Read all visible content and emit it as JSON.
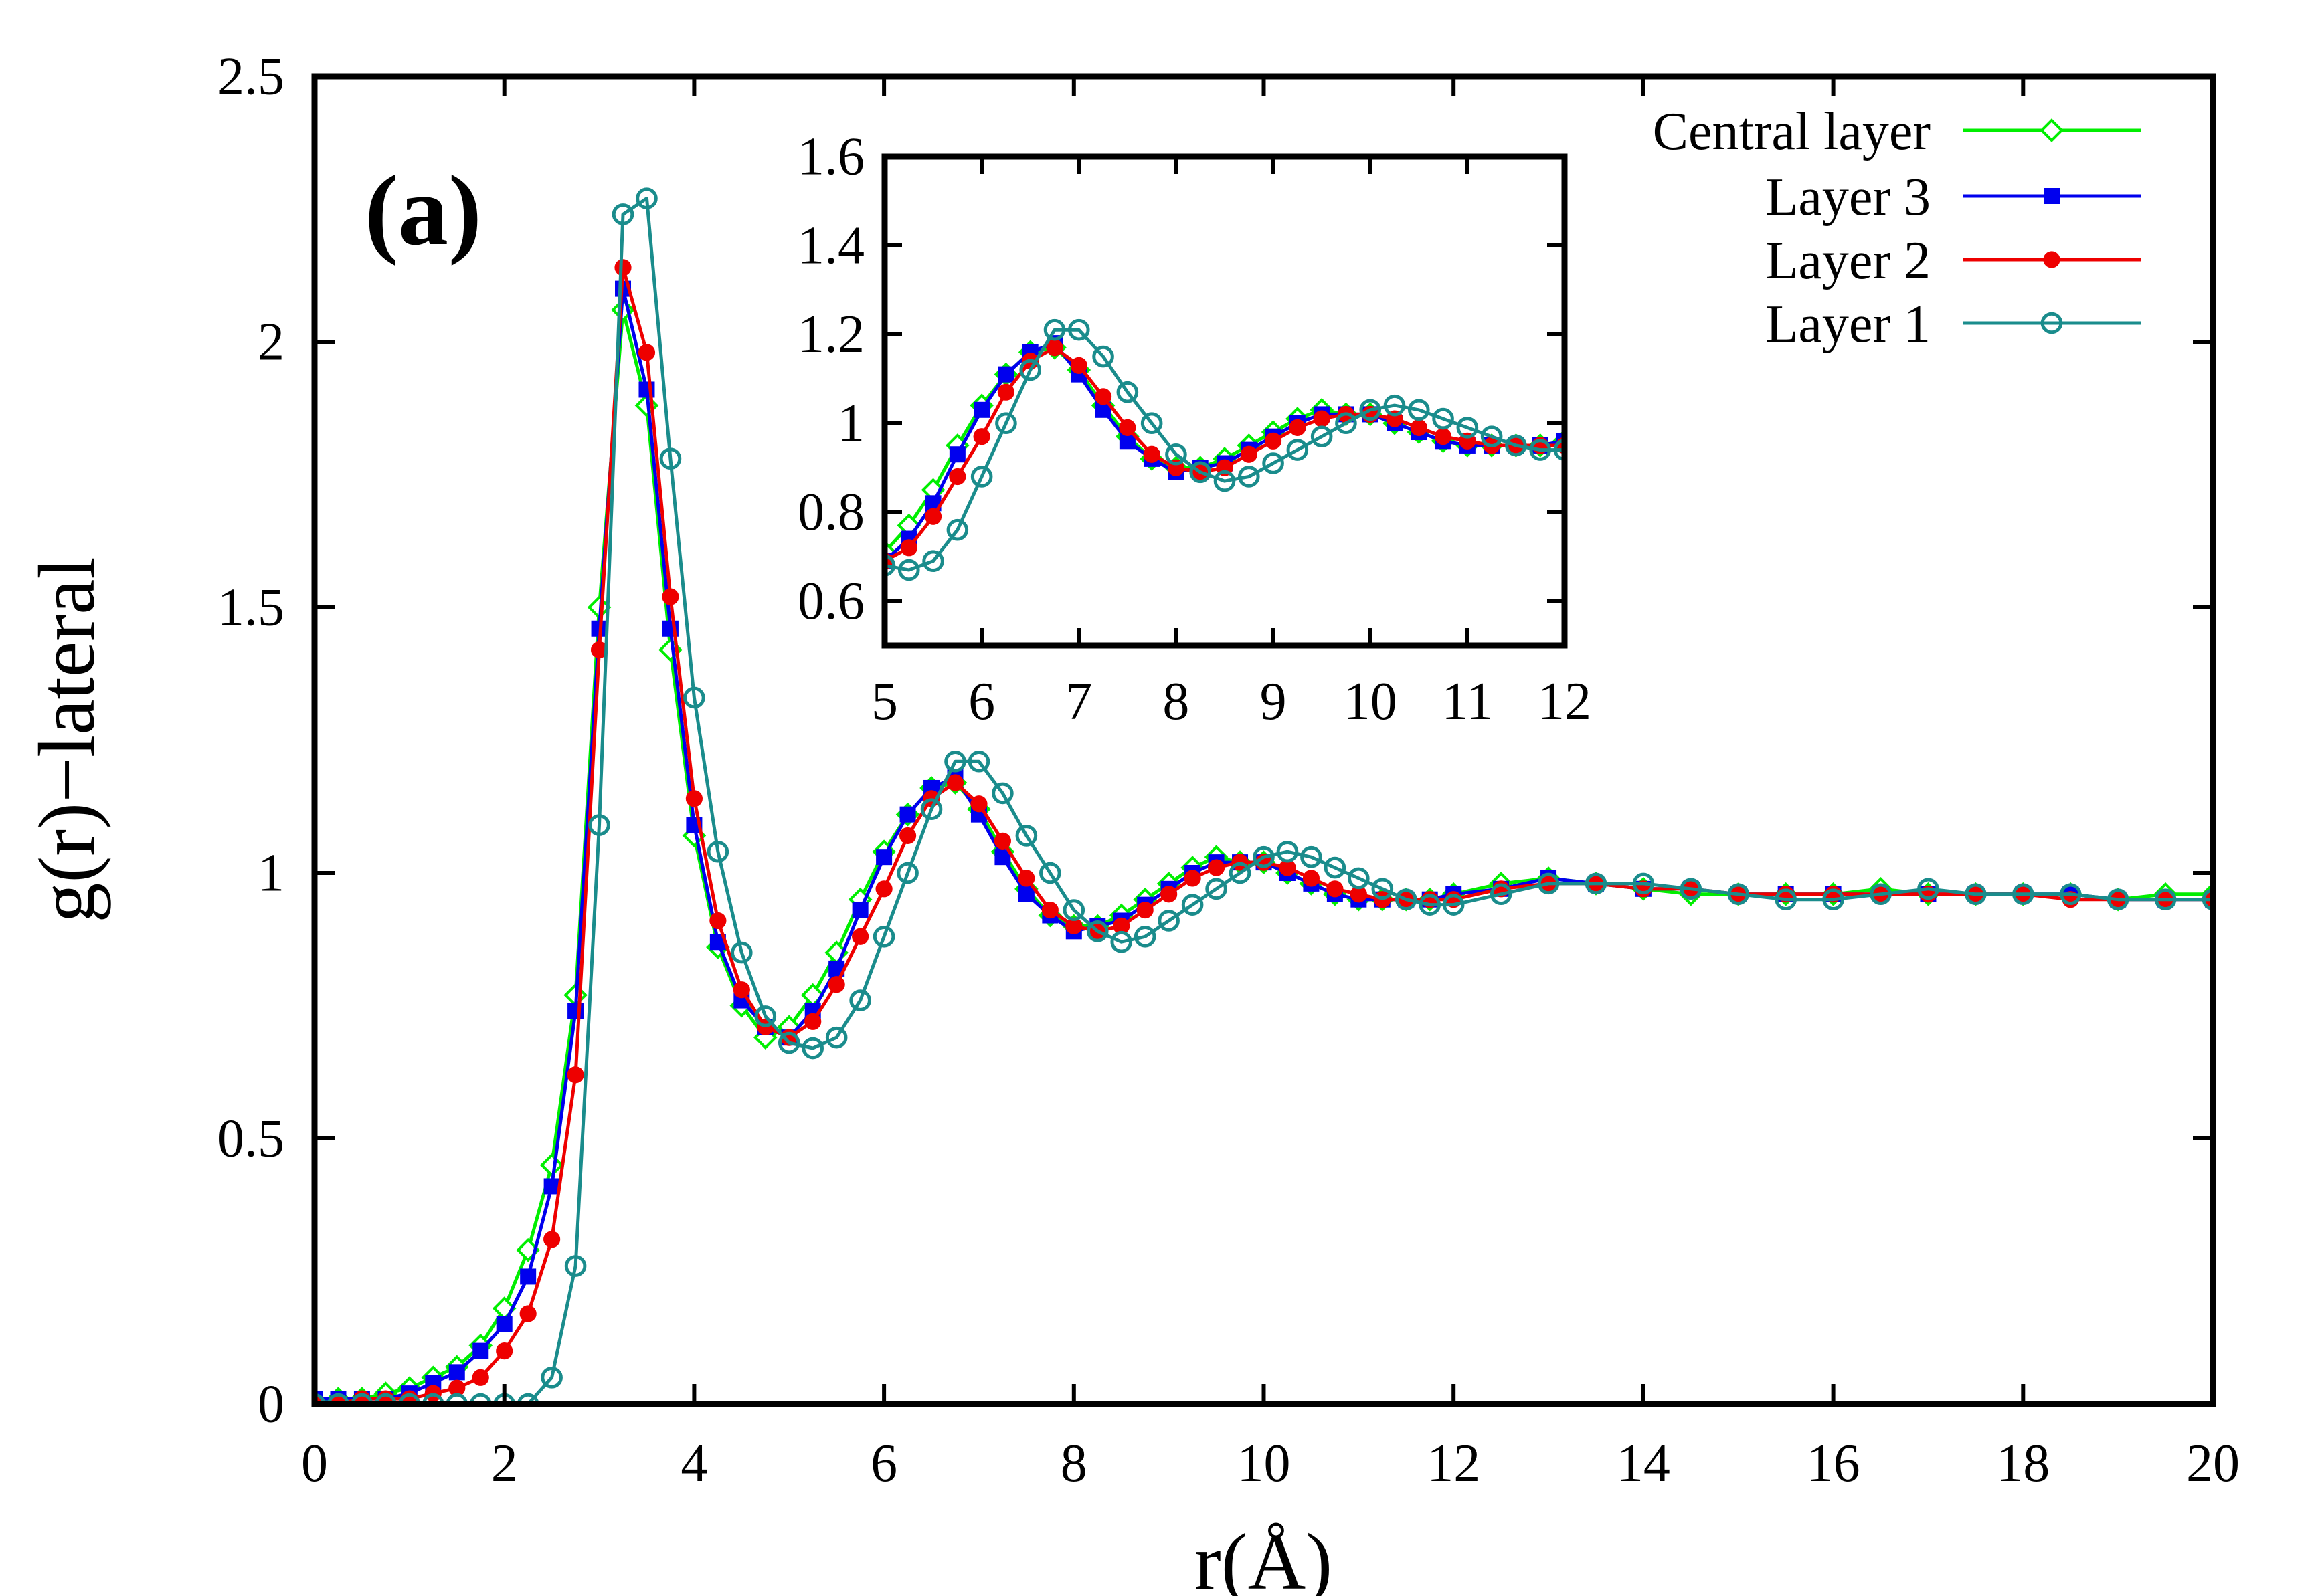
{
  "chart_data": [
    {
      "type": "line",
      "panel_label": "(a)",
      "xlabel": "r(Å)",
      "ylabel": "g(r)−lateral",
      "xlim": [
        0,
        20
      ],
      "ylim": [
        0,
        2.5
      ],
      "xticks": [
        0,
        2,
        4,
        6,
        8,
        10,
        12,
        14,
        16,
        18,
        20
      ],
      "yticks": [
        0,
        0.5,
        1,
        1.5,
        2,
        2.5
      ],
      "xtick_labels": [
        "0",
        "2",
        "4",
        "6",
        "8",
        "10",
        "12",
        "14",
        "16",
        "18",
        "20"
      ],
      "ytick_labels": [
        "0",
        "0.5",
        "1",
        "1.5",
        "2",
        "2.5"
      ],
      "legend_position": "top-right",
      "series": [
        {
          "name": "Central layer",
          "color": "#00ee00",
          "marker": "open-diamond",
          "x": [
            0,
            0.25,
            0.5,
            0.75,
            1,
            1.25,
            1.5,
            1.75,
            2,
            2.25,
            2.5,
            2.75,
            3,
            3.25,
            3.5,
            3.75,
            4,
            4.25,
            4.5,
            4.75,
            5,
            5.25,
            5.5,
            5.75,
            6,
            6.25,
            6.5,
            6.75,
            7,
            7.25,
            7.5,
            7.75,
            8,
            8.25,
            8.5,
            8.75,
            9,
            9.25,
            9.5,
            9.75,
            10,
            10.25,
            10.5,
            10.75,
            11,
            11.25,
            11.5,
            11.75,
            12,
            12.5,
            13,
            13.5,
            14,
            14.5,
            15,
            15.5,
            16,
            16.5,
            17,
            17.5,
            18,
            18.5,
            19,
            19.5,
            20
          ],
          "y": [
            0,
            0.01,
            0.01,
            0.02,
            0.03,
            0.05,
            0.07,
            0.11,
            0.18,
            0.29,
            0.45,
            0.77,
            1.5,
            2.06,
            1.88,
            1.42,
            1.07,
            0.86,
            0.75,
            0.69,
            0.71,
            0.77,
            0.85,
            0.95,
            1.04,
            1.11,
            1.16,
            1.17,
            1.12,
            1.04,
            0.97,
            0.92,
            0.9,
            0.9,
            0.92,
            0.95,
            0.98,
            1.01,
            1.03,
            1.02,
            1.02,
            1.0,
            0.98,
            0.96,
            0.95,
            0.95,
            0.95,
            0.95,
            0.96,
            0.98,
            0.99,
            0.98,
            0.97,
            0.96,
            0.96,
            0.96,
            0.96,
            0.97,
            0.96,
            0.96,
            0.96,
            0.96,
            0.95,
            0.96,
            0.96
          ]
        },
        {
          "name": "Layer 3",
          "color": "#0000ee",
          "marker": "filled-square",
          "x": [
            0,
            0.25,
            0.5,
            0.75,
            1,
            1.25,
            1.5,
            1.75,
            2,
            2.25,
            2.5,
            2.75,
            3,
            3.25,
            3.5,
            3.75,
            4,
            4.25,
            4.5,
            4.75,
            5,
            5.25,
            5.5,
            5.75,
            6,
            6.25,
            6.5,
            6.75,
            7,
            7.25,
            7.5,
            7.75,
            8,
            8.25,
            8.5,
            8.75,
            9,
            9.25,
            9.5,
            9.75,
            10,
            10.25,
            10.5,
            10.75,
            11,
            11.25,
            11.5,
            11.75,
            12,
            12.5,
            13,
            13.5,
            14,
            14.5,
            15,
            15.5,
            16,
            16.5,
            17,
            17.5,
            18,
            18.5,
            19,
            19.5,
            20
          ],
          "y": [
            0.01,
            0.01,
            0.01,
            0.01,
            0.02,
            0.04,
            0.06,
            0.1,
            0.15,
            0.24,
            0.41,
            0.74,
            1.46,
            2.1,
            1.91,
            1.46,
            1.09,
            0.87,
            0.76,
            0.71,
            0.69,
            0.74,
            0.82,
            0.93,
            1.03,
            1.11,
            1.16,
            1.18,
            1.11,
            1.03,
            0.96,
            0.92,
            0.89,
            0.9,
            0.91,
            0.94,
            0.97,
            1.0,
            1.02,
            1.02,
            1.02,
            1.0,
            0.98,
            0.96,
            0.95,
            0.95,
            0.95,
            0.95,
            0.96,
            0.97,
            0.99,
            0.98,
            0.97,
            0.97,
            0.96,
            0.96,
            0.96,
            0.96,
            0.96,
            0.96,
            0.96,
            0.96,
            0.95,
            0.95,
            0.95
          ]
        },
        {
          "name": "Layer 2",
          "color": "#ee0000",
          "marker": "filled-circle",
          "x": [
            0,
            0.25,
            0.5,
            0.75,
            1,
            1.25,
            1.5,
            1.75,
            2,
            2.25,
            2.5,
            2.75,
            3,
            3.25,
            3.5,
            3.75,
            4,
            4.25,
            4.5,
            4.75,
            5,
            5.25,
            5.5,
            5.75,
            6,
            6.25,
            6.5,
            6.75,
            7,
            7.25,
            7.5,
            7.75,
            8,
            8.25,
            8.5,
            8.75,
            9,
            9.25,
            9.5,
            9.75,
            10,
            10.25,
            10.5,
            10.75,
            11,
            11.25,
            11.5,
            11.75,
            12,
            12.5,
            13,
            13.5,
            14,
            14.5,
            15,
            15.5,
            16,
            16.5,
            17,
            17.5,
            18,
            18.5,
            19,
            19.5,
            20
          ],
          "y": [
            0,
            0,
            0.01,
            0.01,
            0.01,
            0.02,
            0.03,
            0.05,
            0.1,
            0.17,
            0.31,
            0.62,
            1.42,
            2.14,
            1.98,
            1.52,
            1.14,
            0.91,
            0.78,
            0.71,
            0.69,
            0.72,
            0.79,
            0.88,
            0.97,
            1.07,
            1.14,
            1.17,
            1.13,
            1.06,
            0.99,
            0.93,
            0.9,
            0.89,
            0.9,
            0.93,
            0.96,
            0.99,
            1.01,
            1.02,
            1.02,
            1.01,
            0.99,
            0.97,
            0.96,
            0.95,
            0.95,
            0.95,
            0.95,
            0.97,
            0.98,
            0.98,
            0.97,
            0.97,
            0.96,
            0.96,
            0.96,
            0.96,
            0.96,
            0.96,
            0.96,
            0.95,
            0.95,
            0.95,
            0.95
          ]
        },
        {
          "name": "Layer 1",
          "color": "#1a8c8c",
          "marker": "open-circle",
          "x": [
            0,
            0.25,
            0.5,
            0.75,
            1,
            1.25,
            1.5,
            1.75,
            2,
            2.25,
            2.5,
            2.75,
            3,
            3.25,
            3.5,
            3.75,
            4,
            4.25,
            4.5,
            4.75,
            5,
            5.25,
            5.5,
            5.75,
            6,
            6.25,
            6.5,
            6.75,
            7,
            7.25,
            7.5,
            7.75,
            8,
            8.25,
            8.5,
            8.75,
            9,
            9.25,
            9.5,
            9.75,
            10,
            10.25,
            10.5,
            10.75,
            11,
            11.25,
            11.5,
            11.75,
            12,
            12.5,
            13,
            13.5,
            14,
            14.5,
            15,
            15.5,
            16,
            16.5,
            17,
            17.5,
            18,
            18.5,
            19,
            19.5,
            20
          ],
          "y": [
            0,
            0,
            0,
            0,
            0,
            0,
            0,
            0,
            0,
            0,
            0.05,
            0.26,
            1.09,
            2.24,
            2.27,
            1.78,
            1.33,
            1.04,
            0.85,
            0.73,
            0.68,
            0.67,
            0.69,
            0.76,
            0.88,
            1.0,
            1.12,
            1.21,
            1.21,
            1.15,
            1.07,
            1.0,
            0.93,
            0.89,
            0.87,
            0.88,
            0.91,
            0.94,
            0.97,
            1.0,
            1.03,
            1.04,
            1.03,
            1.01,
            0.99,
            0.97,
            0.95,
            0.94,
            0.94,
            0.96,
            0.98,
            0.98,
            0.98,
            0.97,
            0.96,
            0.95,
            0.95,
            0.96,
            0.97,
            0.96,
            0.96,
            0.96,
            0.95,
            0.95,
            0.95
          ]
        }
      ]
    },
    {
      "type": "line",
      "role": "inset",
      "xlim": [
        5,
        12
      ],
      "ylim": [
        0.5,
        1.6
      ],
      "xticks": [
        5,
        6,
        7,
        8,
        9,
        10,
        11,
        12
      ],
      "yticks": [
        0.6,
        0.8,
        1,
        1.2,
        1.4,
        1.6
      ],
      "xtick_labels": [
        "5",
        "6",
        "7",
        "8",
        "9",
        "10",
        "11",
        "12"
      ],
      "ytick_labels": [
        "0.6",
        "0.8",
        "1",
        "1.2",
        "1.4",
        "1.6"
      ],
      "note": "zoom of main panel, same four series"
    }
  ]
}
